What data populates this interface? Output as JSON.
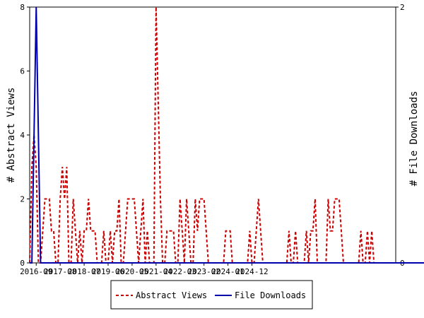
{
  "chart_data": {
    "type": "line",
    "ylabel_left": "# Abstract Views",
    "ylabel_right": "# File Downloads",
    "ylim_left": [
      0,
      8
    ],
    "ylim_right": [
      0,
      2
    ],
    "yticks_left": [
      "0",
      "2",
      "4",
      "6",
      "8"
    ],
    "yticks_right": [
      "0",
      "2"
    ],
    "x_ticks": [
      "2016-09",
      "2017-08",
      "2018-07",
      "2019-06",
      "2020-05",
      "2021-04",
      "2022-03",
      "2023-02",
      "2024-01",
      "2024-12"
    ],
    "x_start": "2016-06",
    "grid": false,
    "legend_position": "bottom",
    "series": [
      {
        "name": "Abstract Views",
        "axis": "left",
        "color": "#cc0000",
        "style": "dashed",
        "values": [
          0,
          3,
          4,
          3,
          0,
          0,
          1,
          2,
          2,
          2,
          1,
          1,
          0,
          0,
          2,
          3,
          2,
          3,
          0,
          0,
          2,
          1,
          0,
          1,
          0,
          1,
          1,
          2,
          1,
          1,
          1,
          0,
          0,
          0,
          1,
          0,
          0,
          1,
          0,
          1,
          1,
          2,
          0,
          0,
          1,
          2,
          2,
          2,
          2,
          1,
          0,
          1,
          2,
          0,
          1,
          0,
          0,
          0,
          8,
          5,
          2,
          0,
          0,
          1,
          1,
          1,
          1,
          0,
          0,
          2,
          1,
          0,
          2,
          1,
          0,
          0,
          2,
          1,
          2,
          2,
          2,
          1,
          0,
          0,
          0,
          0,
          0,
          0,
          0,
          0,
          1,
          1,
          1,
          0,
          0,
          0,
          0,
          0,
          0,
          0,
          0,
          1,
          0,
          0,
          1,
          2,
          1,
          0,
          0,
          0,
          0,
          0,
          0,
          0,
          0,
          0,
          0,
          0,
          0,
          1,
          0,
          0,
          1,
          0,
          0,
          0,
          0,
          1,
          0,
          1,
          1,
          2,
          0,
          0,
          0,
          0,
          0,
          2,
          1,
          1,
          2,
          2,
          2,
          1,
          0,
          0,
          0,
          0,
          0,
          0,
          0,
          0,
          1,
          0,
          0,
          1,
          0,
          1,
          0,
          0,
          0,
          0,
          0,
          0,
          0,
          0,
          0,
          0
        ]
      },
      {
        "name": "File Downloads",
        "axis": "right",
        "color": "#0000aa",
        "style": "solid",
        "values": [
          0,
          0,
          1,
          2,
          1,
          0,
          0,
          0,
          0,
          0,
          0,
          0,
          0,
          0,
          0,
          0,
          0,
          0,
          0,
          0,
          0,
          0,
          0,
          0,
          0,
          0,
          0,
          0,
          0,
          0,
          0,
          0,
          0,
          0,
          0,
          0,
          0,
          0,
          0,
          0,
          0,
          0,
          0,
          0,
          0,
          0,
          0,
          0,
          0,
          0,
          0,
          0,
          0,
          0,
          0,
          0,
          0,
          0,
          0,
          0,
          0,
          0,
          0,
          0,
          0,
          0,
          0,
          0,
          0,
          0,
          0,
          0,
          0,
          0,
          0,
          0,
          0,
          0,
          0,
          0,
          0,
          0,
          0,
          0,
          0,
          0,
          0,
          0,
          0,
          0,
          0,
          0,
          0,
          0,
          0,
          0,
          0,
          0,
          0,
          0,
          0,
          0,
          0,
          0,
          0,
          0,
          0,
          0,
          0,
          0,
          0,
          0,
          0,
          0,
          0,
          0,
          0,
          0,
          0,
          0,
          0,
          0,
          0,
          0,
          0,
          0,
          0,
          0,
          0,
          0,
          0,
          0,
          0,
          0,
          0,
          0,
          0,
          0,
          0,
          0,
          0,
          0,
          0,
          0,
          0,
          0,
          0,
          0,
          0,
          0,
          0,
          0,
          0,
          0,
          0,
          0,
          0,
          0,
          0,
          0,
          0,
          0,
          0,
          0,
          0,
          0,
          0,
          0,
          0,
          0,
          0,
          0,
          0,
          0,
          0,
          0,
          0,
          0,
          0,
          0,
          0,
          0,
          0,
          0
        ]
      }
    ]
  }
}
